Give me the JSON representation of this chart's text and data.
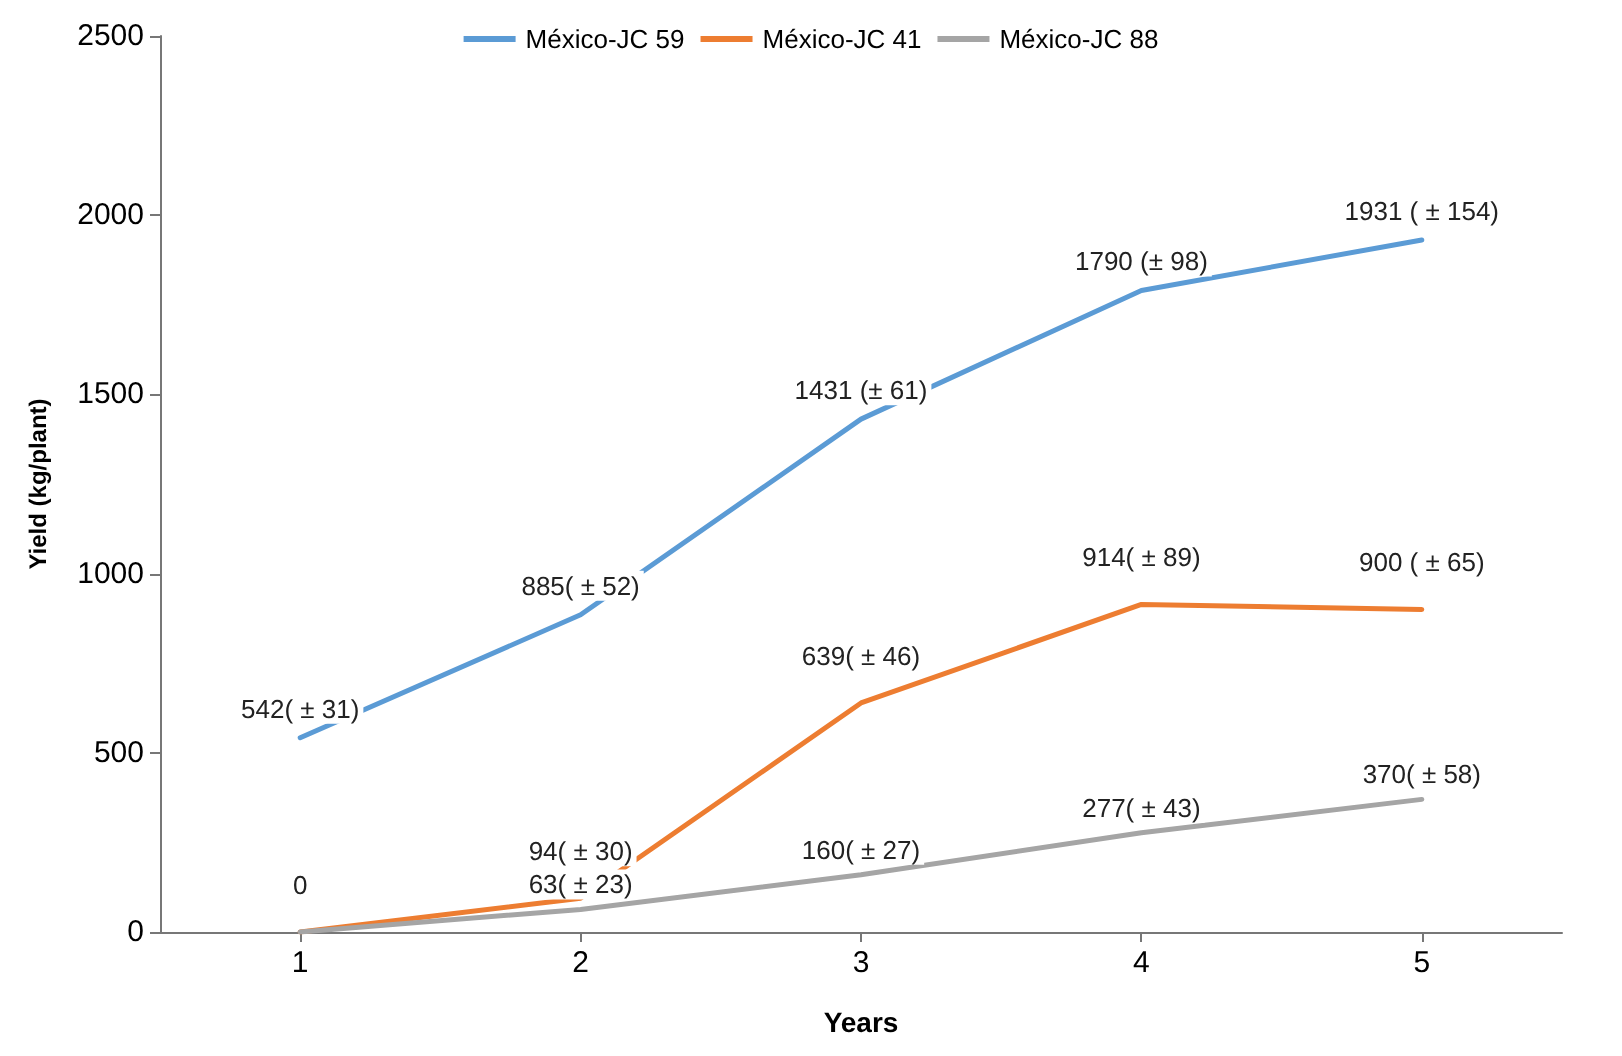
{
  "chart_data": {
    "type": "line",
    "xlabel": "Years",
    "ylabel": "Yield (kg/plant)",
    "categories": [
      "1",
      "2",
      "3",
      "4",
      "5"
    ],
    "ylim": [
      0,
      2500
    ],
    "yticks": [
      0,
      500,
      1000,
      1500,
      2000,
      2500
    ],
    "grid": false,
    "legend": "top",
    "marker": "none",
    "line_style": "solid",
    "series": [
      {
        "name": "México-JC 59",
        "color": "#5b9bd5",
        "values": [
          542,
          885,
          1431,
          1790,
          1931
        ],
        "value_labels": [
          "542( ± 31)",
          "885( ± 52)",
          "1431 (± 61)",
          "1790 (± 98)",
          "1931 ( ± 154)"
        ]
      },
      {
        "name": "México-JC 41",
        "color": "#ed7d31",
        "values": [
          0,
          94,
          639,
          914,
          900
        ],
        "value_labels": [
          "0",
          "94( ± 30)",
          "639( ± 46)",
          "914( ± 89)",
          "900 ( ± 65)"
        ]
      },
      {
        "name": "México-JC 88",
        "color": "#a5a5a5",
        "values": [
          0,
          63,
          160,
          277,
          370
        ],
        "value_labels": [
          null,
          "63( ± 23)",
          "160( ± 27)",
          "277( ± 43)",
          "370( ± 58)"
        ]
      }
    ]
  }
}
